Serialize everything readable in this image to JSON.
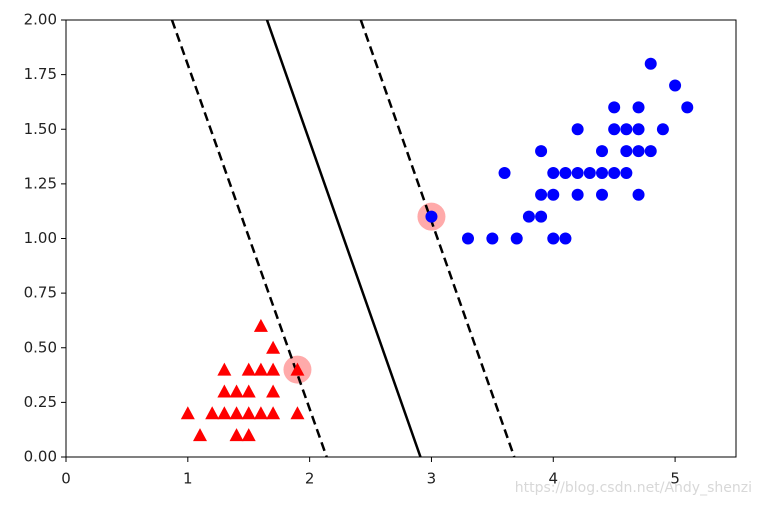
{
  "chart_data": {
    "type": "scatter",
    "xlim": [
      0,
      5.5
    ],
    "ylim": [
      0,
      2.0
    ],
    "xticks": [
      0,
      1,
      2,
      3,
      4,
      5
    ],
    "yticks": [
      {
        "value": 0,
        "label": "0.00"
      },
      {
        "value": 0.25,
        "label": "0.25"
      },
      {
        "value": 0.5,
        "label": "0.50"
      },
      {
        "value": 0.75,
        "label": "0.75"
      },
      {
        "value": 1.0,
        "label": "1.00"
      },
      {
        "value": 1.25,
        "label": "1.25"
      },
      {
        "value": 1.5,
        "label": "1.50"
      },
      {
        "value": 1.75,
        "label": "1.75"
      },
      {
        "value": 2.0,
        "label": "2.00"
      }
    ],
    "support_vectors": {
      "color": "#ffaaaa",
      "x": [
        1.9,
        3.0
      ],
      "y": [
        0.4,
        1.1
      ]
    },
    "series": [
      {
        "marker": "triangle",
        "color": "#ff0000",
        "x": [
          1.0,
          1.1,
          1.2,
          1.3,
          1.3,
          1.3,
          1.4,
          1.4,
          1.4,
          1.5,
          1.5,
          1.5,
          1.5,
          1.6,
          1.6,
          1.6,
          1.7,
          1.7,
          1.7,
          1.7,
          1.9,
          1.9
        ],
        "y": [
          0.2,
          0.1,
          0.2,
          0.2,
          0.3,
          0.4,
          0.2,
          0.3,
          0.1,
          0.2,
          0.3,
          0.4,
          0.1,
          0.2,
          0.4,
          0.6,
          0.2,
          0.3,
          0.4,
          0.5,
          0.4,
          0.2
        ]
      },
      {
        "marker": "circle",
        "color": "#0000ff",
        "x": [
          3.0,
          3.3,
          3.5,
          3.6,
          3.7,
          3.8,
          3.9,
          3.9,
          3.9,
          4.0,
          4.0,
          4.0,
          4.1,
          4.1,
          4.2,
          4.2,
          4.2,
          4.3,
          4.4,
          4.4,
          4.4,
          4.5,
          4.5,
          4.5,
          4.6,
          4.6,
          4.6,
          4.7,
          4.7,
          4.7,
          4.7,
          4.8,
          4.8,
          4.9,
          5.0,
          5.1
        ],
        "y": [
          1.1,
          1.0,
          1.0,
          1.3,
          1.0,
          1.1,
          1.1,
          1.2,
          1.4,
          1.0,
          1.2,
          1.3,
          1.0,
          1.3,
          1.2,
          1.3,
          1.5,
          1.3,
          1.2,
          1.3,
          1.4,
          1.3,
          1.5,
          1.6,
          1.3,
          1.4,
          1.5,
          1.2,
          1.4,
          1.5,
          1.6,
          1.4,
          1.8,
          1.5,
          1.7,
          1.6
        ]
      }
    ],
    "lines": [
      {
        "style": "solid",
        "color": "#000000",
        "x": [
          1.65,
          2.91
        ],
        "y": [
          2.0,
          0
        ]
      },
      {
        "style": "dashed",
        "color": "#000000",
        "x": [
          0.87,
          2.14
        ],
        "y": [
          2.0,
          0
        ]
      },
      {
        "style": "dashed",
        "color": "#000000",
        "x": [
          2.42,
          3.68
        ],
        "y": [
          2.0,
          0
        ]
      }
    ],
    "watermark": "https://blog.csdn.net/Andy_shenzi"
  }
}
